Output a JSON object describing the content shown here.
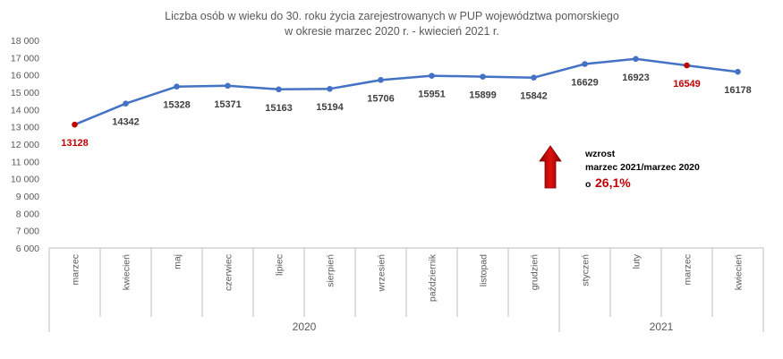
{
  "chart_data": {
    "type": "line",
    "title_lines": [
      "Liczba osób w wieku do 30. roku życia zarejestrowanych w PUP województwa pomorskiego",
      "w okresie marzec 2020 r. - kwiecień 2021 r."
    ],
    "categories": [
      "marzec",
      "kwiecień",
      "maj",
      "czerwiec",
      "lipiec",
      "sierpień",
      "wrzesień",
      "październik",
      "listopad",
      "grudzień",
      "styczeń",
      "luty",
      "marzec",
      "kwiecień"
    ],
    "values": [
      13128,
      14342,
      15328,
      15371,
      15163,
      15194,
      15706,
      15951,
      15899,
      15842,
      16629,
      16923,
      16549,
      16178
    ],
    "data_labels": [
      "13128",
      "14342",
      "15328",
      "15371",
      "15163",
      "15194",
      "15706",
      "15951",
      "15899",
      "15842",
      "16629",
      "16923",
      "16549",
      "16178"
    ],
    "highlighted_indices": [
      0,
      12
    ],
    "year_groups": [
      {
        "label": "2020",
        "start": 0,
        "end": 9
      },
      {
        "label": "2021",
        "start": 10,
        "end": 13
      }
    ],
    "y_ticks": [
      "6 000",
      "7 000",
      "8 000",
      "9 000",
      "10 000",
      "11 000",
      "12 000",
      "13 000",
      "14 000",
      "15 000",
      "16 000",
      "17 000",
      "18 000"
    ],
    "ylim": [
      6000,
      18000
    ],
    "ystep": 1000,
    "grid": false,
    "legend": "none",
    "annotation": {
      "line1": "wzrost",
      "line2": "marzec 2021/marzec 2020",
      "bullet": "o",
      "percent": "26,1%"
    },
    "colors": {
      "line": "#4472c4",
      "marker": "#4472c4",
      "highlight": "#c00000",
      "arrow": "#c00000",
      "axis": "#bfbfbf"
    }
  }
}
